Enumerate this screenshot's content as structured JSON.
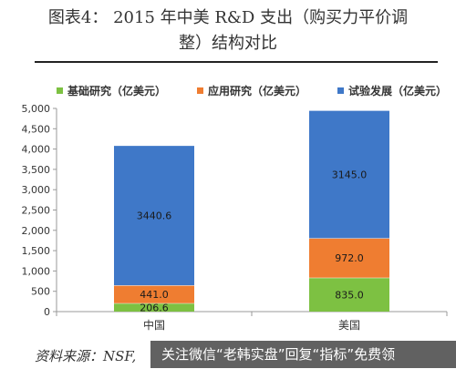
{
  "header": {
    "title_line1": "图表4：  2015 年中美 R&D 支出（购买力平价调",
    "title_line2": "整）结构对比"
  },
  "footer": {
    "source": "资料来源：NSF,",
    "watermark": "关注微信“老韩实盘”回复“指标”免费领"
  },
  "colors": {
    "basic": "#7dc142",
    "applied": "#ef7d31",
    "experimental": "#3f78c8"
  },
  "chart_data": {
    "type": "bar",
    "stacked": true,
    "categories": [
      "中国",
      "美国"
    ],
    "series": [
      {
        "name": "基础研究（亿美元）",
        "values": [
          206.6,
          835.0
        ],
        "labels": [
          "206.6",
          "835.0"
        ]
      },
      {
        "name": "应用研究（亿美元）",
        "values": [
          441.0,
          972.0
        ],
        "labels": [
          "441.0",
          "972.0"
        ]
      },
      {
        "name": "试验发展（亿美元）",
        "values": [
          3440.6,
          3145.0
        ],
        "labels": [
          "3440.6",
          "3145.0"
        ]
      }
    ],
    "ylim": [
      0,
      5000
    ],
    "yticks": [
      0,
      500,
      1000,
      1500,
      2000,
      2500,
      3000,
      3500,
      4000,
      4500,
      5000
    ],
    "ytick_labels": [
      "0",
      "500",
      "1,000",
      "1,500",
      "2,000",
      "2,500",
      "3,000",
      "3,500",
      "4,000",
      "4,500",
      "5,000"
    ],
    "grid": false,
    "legend_position": "top"
  }
}
